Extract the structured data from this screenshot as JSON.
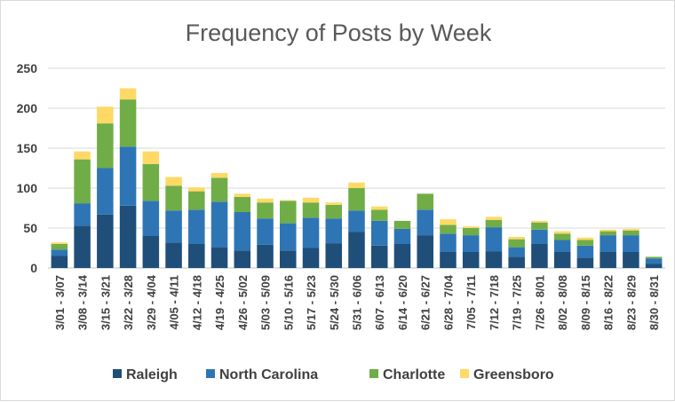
{
  "chart_data": {
    "type": "bar",
    "stacked": true,
    "title": "Frequency of Posts by Week",
    "xlabel": "",
    "ylabel": "",
    "ylim": [
      0,
      250
    ],
    "yticks": [
      0,
      50,
      100,
      150,
      200,
      250
    ],
    "grid": true,
    "legend_position": "bottom",
    "categories": [
      "3/01 - 3/07",
      "3/08 - 3/14",
      "3/15 - 3/21",
      "3/22 - 3/28",
      "3/29 - 4/04",
      "4/05 - 4/11",
      "4/12 - 4/18",
      "4/19 - 4/25",
      "4/26 - 5/02",
      "5/03 - 5/09",
      "5/10 - 5/16",
      "5/17 - 5/23",
      "5/24 - 5/30",
      "5/31 - 6/06",
      "6/07 - 6/13",
      "6/14 - 6/20",
      "6/21 - 6/27",
      "6/28 - 7/04",
      "7/05 - 7/11",
      "7/12 - 7/18",
      "7/19 - 7/25",
      "7/26 - 8/01",
      "8/02 - 8/08",
      "8/09 - 8/15",
      "8/16 - 8/22",
      "8/23 - 8/29",
      "8/30 - 8/31"
    ],
    "series": [
      {
        "name": "Raleigh",
        "color": "#1f4e79",
        "values": [
          15,
          53,
          67,
          78,
          40,
          32,
          30,
          26,
          22,
          29,
          22,
          25,
          31,
          45,
          28,
          30,
          41,
          20,
          20,
          21,
          14,
          30,
          20,
          13,
          20,
          20,
          5
        ]
      },
      {
        "name": "North Carolina",
        "color": "#2e75b6",
        "values": [
          8,
          28,
          58,
          74,
          44,
          40,
          43,
          57,
          48,
          33,
          34,
          38,
          31,
          27,
          31,
          19,
          32,
          23,
          21,
          30,
          12,
          18,
          15,
          15,
          21,
          21,
          7
        ]
      },
      {
        "name": "Charlotte",
        "color": "#70ad47",
        "values": [
          7,
          55,
          56,
          59,
          46,
          31,
          23,
          30,
          19,
          20,
          28,
          19,
          17,
          28,
          14,
          10,
          20,
          11,
          9,
          9,
          10,
          9,
          8,
          7,
          5,
          6,
          2
        ]
      },
      {
        "name": "Greensboro",
        "color": "#ffd966",
        "values": [
          2,
          10,
          21,
          14,
          16,
          11,
          5,
          6,
          4,
          5,
          1,
          6,
          3,
          7,
          4,
          0,
          0,
          7,
          2,
          4,
          3,
          2,
          3,
          3,
          2,
          2,
          0
        ]
      }
    ]
  }
}
